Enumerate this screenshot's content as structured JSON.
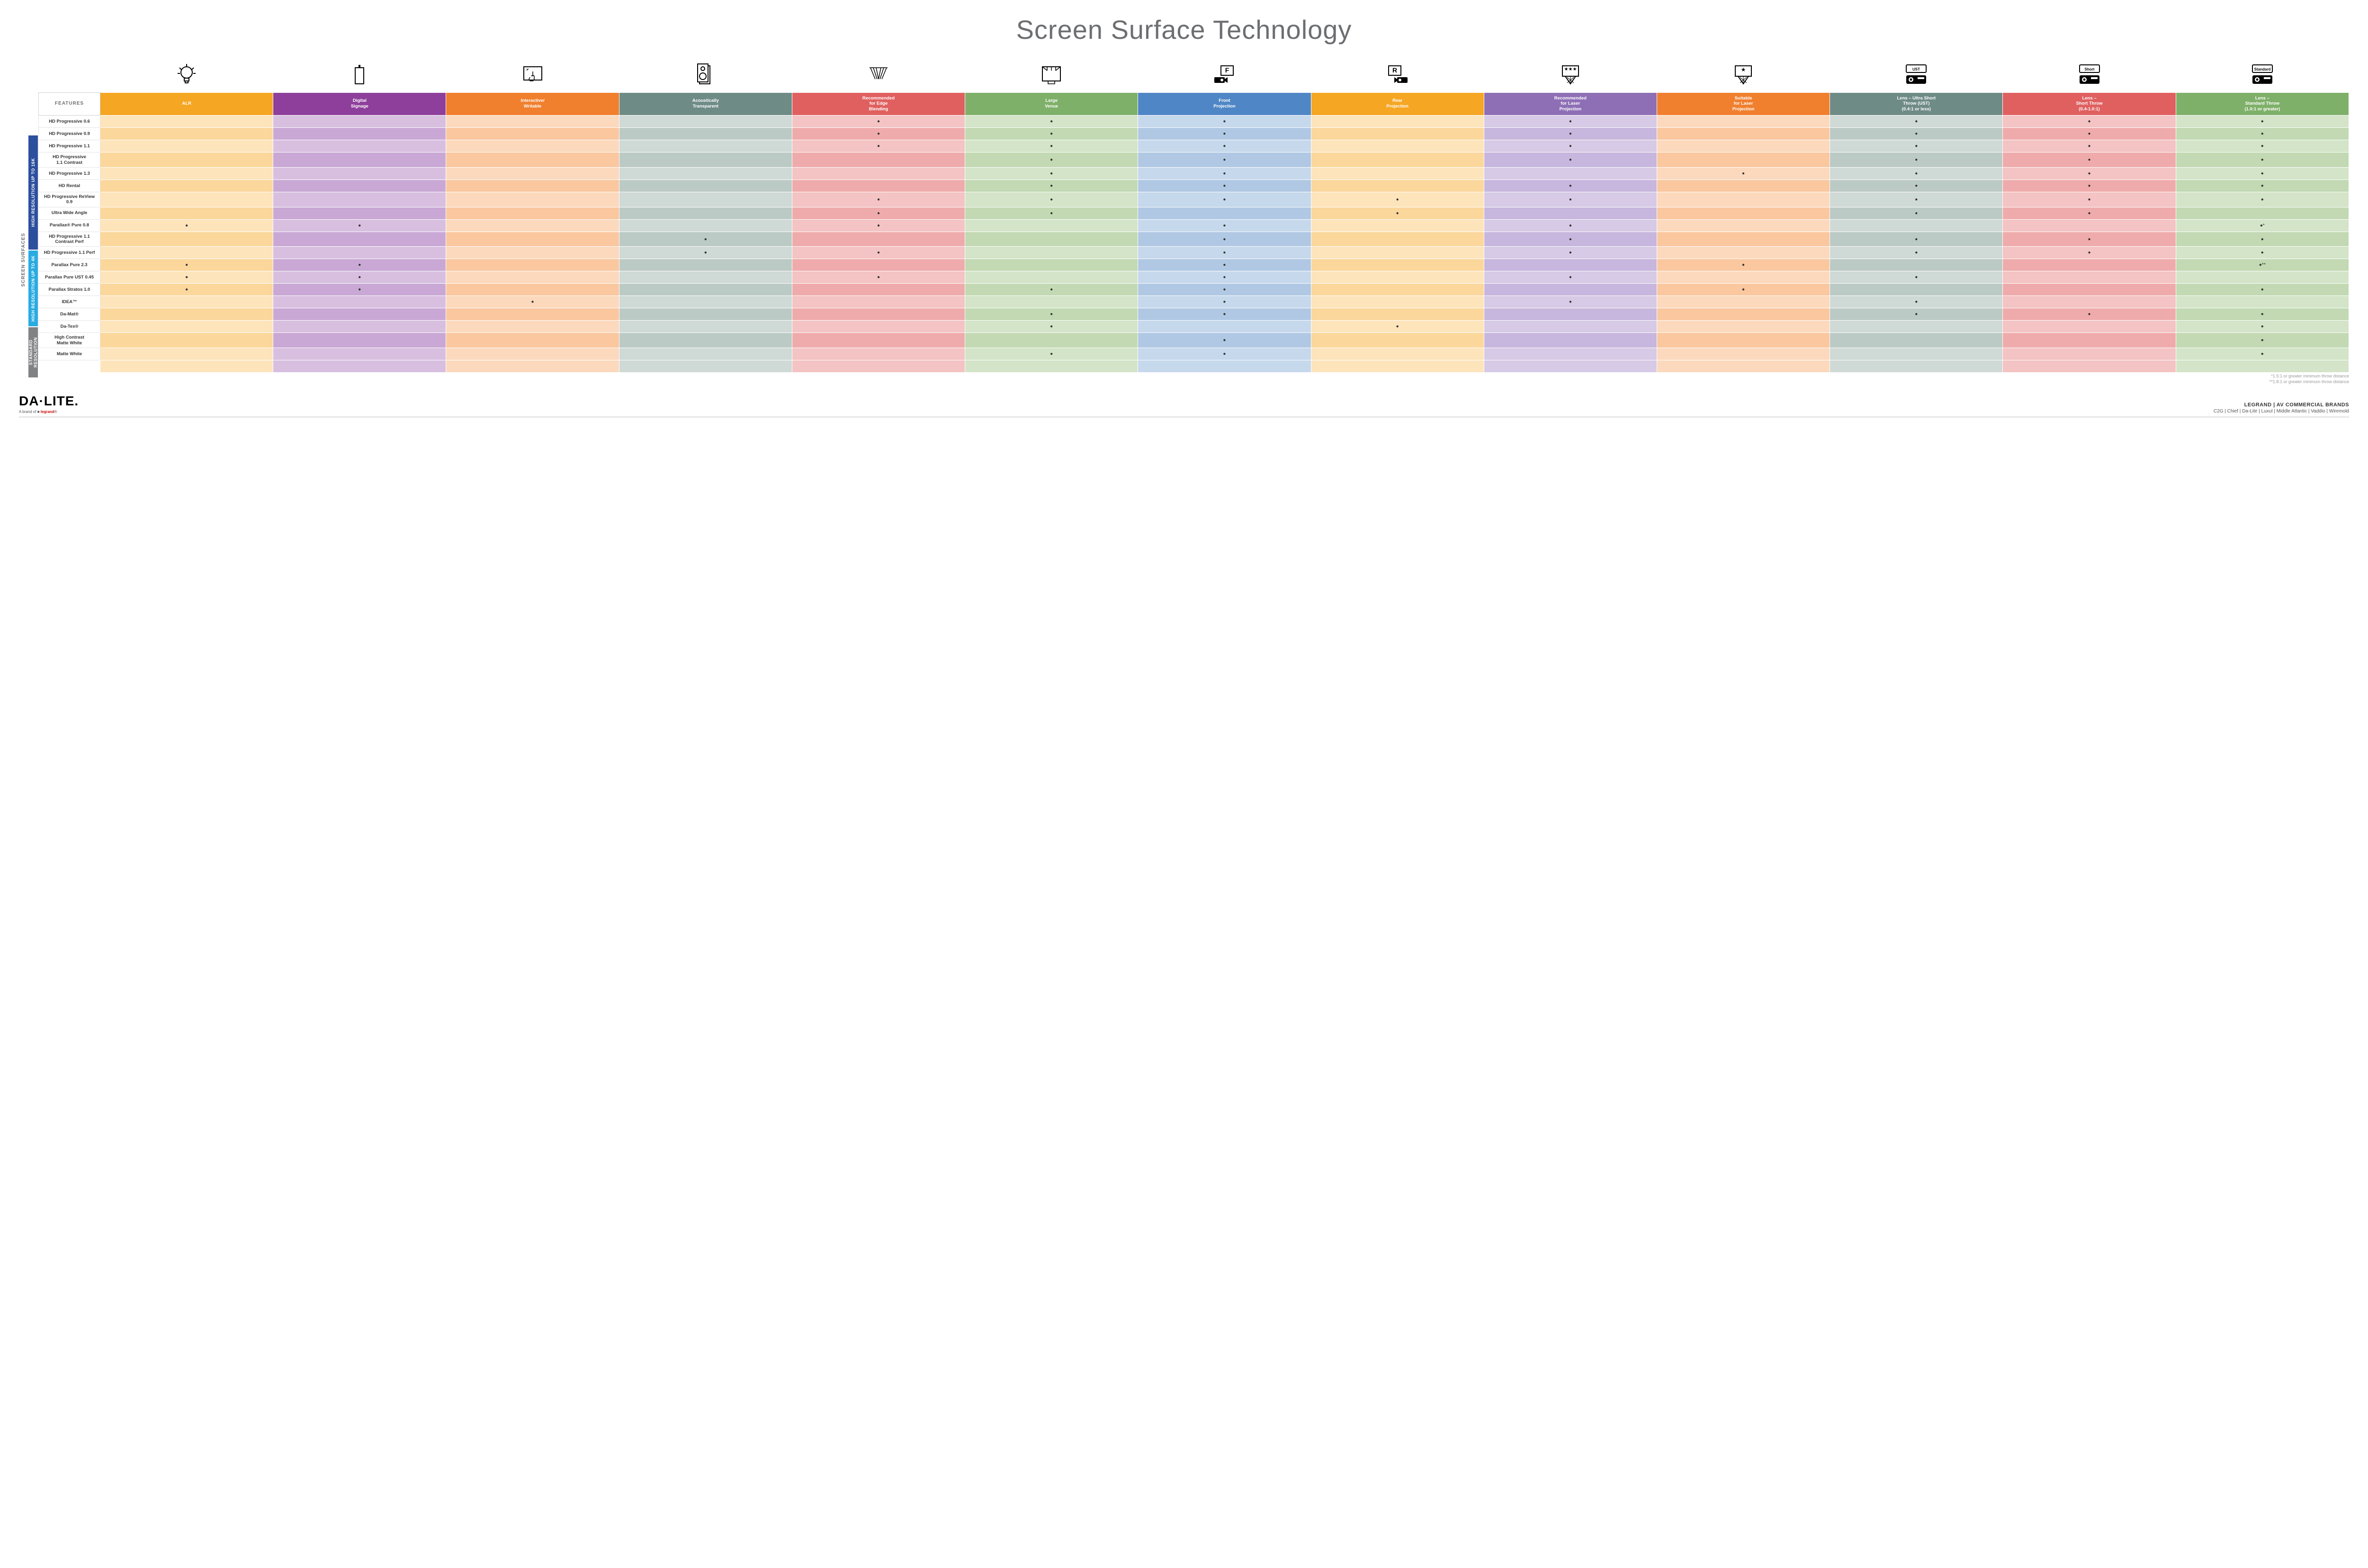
{
  "title": "Screen Surface Technology",
  "side_label": "SCREEN SURFACES",
  "features_header": "FEATURES",
  "colors": {
    "alr": {
      "head": "#f5a623",
      "rowA": "#fde4bb",
      "rowB": "#fbd79c"
    },
    "sign": {
      "head": "#8e3f9b",
      "rowA": "#d8bfe0",
      "rowB": "#c9a8d5"
    },
    "inter": {
      "head": "#f07f2e",
      "rowA": "#fcd9bd",
      "rowB": "#fac79f"
    },
    "acous": {
      "head": "#6f8b86",
      "rowA": "#cfd9d6",
      "rowB": "#bccac5"
    },
    "edge": {
      "head": "#e06060",
      "rowA": "#f4c3c3",
      "rowB": "#efabab"
    },
    "venue": {
      "head": "#7fb069",
      "rowA": "#d3e4c8",
      "rowB": "#c2d9b3"
    },
    "front": {
      "head": "#4f86c6",
      "rowA": "#c6d8ec",
      "rowB": "#b0c8e3"
    },
    "rear": {
      "head": "#f5a623",
      "rowA": "#fde4bb",
      "rowB": "#fbd79c"
    },
    "reclsr": {
      "head": "#8e6fb5",
      "rowA": "#d6cae6",
      "rowB": "#c7b6dd"
    },
    "suitlsr": {
      "head": "#f07f2e",
      "rowA": "#fcd9bd",
      "rowB": "#fac79f"
    },
    "ust": {
      "head": "#6f8b86",
      "rowA": "#cfd9d6",
      "rowB": "#bccac5"
    },
    "short": {
      "head": "#e06060",
      "rowA": "#f4c3c3",
      "rowB": "#efabab"
    },
    "std": {
      "head": "#7fb069",
      "rowA": "#d3e4c8",
      "rowB": "#c2d9b3"
    }
  },
  "columns": [
    {
      "key": "alr",
      "label": "ALR",
      "icon": "bulb"
    },
    {
      "key": "sign",
      "label": "Digital\nSignage",
      "icon": "signage"
    },
    {
      "key": "inter",
      "label": "Interactive/\nWritable",
      "icon": "touch"
    },
    {
      "key": "acous",
      "label": "Acoustically\nTransparent",
      "icon": "speaker"
    },
    {
      "key": "edge",
      "label": "Recommended\nfor Edge\nBlending",
      "icon": "blend"
    },
    {
      "key": "venue",
      "label": "Large\nVenue",
      "icon": "stage"
    },
    {
      "key": "front",
      "label": "Front\nProjection",
      "icon": "front"
    },
    {
      "key": "rear",
      "label": "Rear\nProjection",
      "icon": "rear"
    },
    {
      "key": "reclsr",
      "label": "Recommended\nfor Laser\nProjection",
      "icon": "laser3"
    },
    {
      "key": "suitlsr",
      "label": "Suitable\nfor Laser\nProjection",
      "icon": "laser1"
    },
    {
      "key": "ust",
      "label": "Lens – Ultra Short\nThrow (UST)\n(0.4:1 or less)",
      "icon": "proj",
      "proj": "UST"
    },
    {
      "key": "short",
      "label": "Lens –\nShort Throw\n(0.4-1.0:1)",
      "icon": "proj",
      "proj": "Short"
    },
    {
      "key": "std",
      "label": "Lens –\nStandard Throw\n(1.0:1 or greater)",
      "icon": "proj",
      "proj": "Standard"
    }
  ],
  "groups": [
    {
      "label": "HIGH RESOLUTION UP TO 16K",
      "color": "#2c4f9e",
      "rows": 9
    },
    {
      "label": "HIGH RESOLUTION UP TO 4K",
      "color": "#29abe2",
      "rows": 6
    },
    {
      "label": "STANDARD\nRESOLUTION",
      "color": "#808285",
      "rows": 4
    }
  ],
  "rows": [
    {
      "label": "HD Progressive 0.6",
      "cells": {
        "edge": "●",
        "venue": "●",
        "front": "●",
        "reclsr": "●",
        "ust": "●",
        "short": "●",
        "std": "●"
      }
    },
    {
      "label": "HD Progressive 0.9",
      "cells": {
        "edge": "●",
        "venue": "●",
        "front": "●",
        "reclsr": "●",
        "ust": "●",
        "short": "●",
        "std": "●"
      }
    },
    {
      "label": "HD Progressive 1.1",
      "cells": {
        "edge": "●",
        "venue": "●",
        "front": "●",
        "reclsr": "●",
        "ust": "●",
        "short": "●",
        "std": "●"
      }
    },
    {
      "label": "HD Progressive\n1.1 Contrast",
      "cells": {
        "venue": "●",
        "front": "●",
        "reclsr": "●",
        "ust": "●",
        "short": "●",
        "std": "●"
      }
    },
    {
      "label": "HD Progressive 1.3",
      "cells": {
        "venue": "●",
        "front": "●",
        "suitlsr": "●",
        "ust": "●",
        "short": "●",
        "std": "●"
      }
    },
    {
      "label": "HD Rental",
      "cells": {
        "venue": "●",
        "front": "●",
        "reclsr": "●",
        "ust": "●",
        "short": "●",
        "std": "●"
      }
    },
    {
      "label": "HD Progressive ReView 0.9",
      "cells": {
        "edge": "●",
        "venue": "●",
        "front": "●",
        "rear": "●",
        "reclsr": "●",
        "ust": "●",
        "short": "●",
        "std": "●"
      }
    },
    {
      "label": "Ultra Wide Angle",
      "cells": {
        "edge": "●",
        "venue": "●",
        "rear": "●",
        "ust": "●",
        "short": "●"
      }
    },
    {
      "label": "Parallax® Pure 0.8",
      "cells": {
        "alr": "●",
        "sign": "●",
        "edge": "●",
        "front": "●",
        "reclsr": "●",
        "std": "●*"
      }
    },
    {
      "label": "HD Progressive 1.1\nContrast Perf",
      "cells": {
        "acous": "●",
        "front": "●",
        "reclsr": "●",
        "ust": "●",
        "short": "●",
        "std": "●"
      }
    },
    {
      "label": "HD Progressive 1.1 Perf",
      "cells": {
        "acous": "●",
        "edge": "●",
        "front": "●",
        "reclsr": "●",
        "ust": "●",
        "short": "●",
        "std": "●"
      }
    },
    {
      "label": "Parallax Pure 2.3",
      "cells": {
        "alr": "●",
        "sign": "●",
        "front": "●",
        "suitlsr": "●",
        "std": "●**"
      }
    },
    {
      "label": "Parallax Pure UST 0.45",
      "cells": {
        "alr": "●",
        "sign": "●",
        "edge": "●",
        "front": "●",
        "reclsr": "●",
        "ust": "●"
      }
    },
    {
      "label": "Parallax Stratos 1.0",
      "cells": {
        "alr": "●",
        "sign": "●",
        "venue": "●",
        "front": "●",
        "suitlsr": "●",
        "std": "●"
      }
    },
    {
      "label": "IDEA™",
      "cells": {
        "inter": "●",
        "front": "●",
        "reclsr": "●",
        "ust": "●"
      }
    },
    {
      "label": "Da-Mat®",
      "cells": {
        "venue": "●",
        "front": "●",
        "ust": "●",
        "short": "●",
        "std": "●"
      }
    },
    {
      "label": "Da-Tex®",
      "cells": {
        "venue": "●",
        "rear": "●",
        "std": "●"
      }
    },
    {
      "label": "High Contrast\nMatte White",
      "cells": {
        "front": "●",
        "std": "●"
      }
    },
    {
      "label": "Matte White",
      "cells": {
        "venue": "●",
        "front": "●",
        "std": "●"
      }
    }
  ],
  "footnotes": [
    "*1.5:1 or greater minimum throw distance",
    "**1.8:1 or greater minimum throw distance"
  ],
  "footer": {
    "logo": "DA·LITE.",
    "sub": "A brand of ",
    "sub_brand": "legrand",
    "brands_title": "LEGRAND | AV COMMERCIAL BRANDS",
    "brands_list": "C2G  |  Chief  |  Da-Lite  |  Luxul  |  Middle Atlantic  |  Vaddio  |  Wiremold"
  }
}
